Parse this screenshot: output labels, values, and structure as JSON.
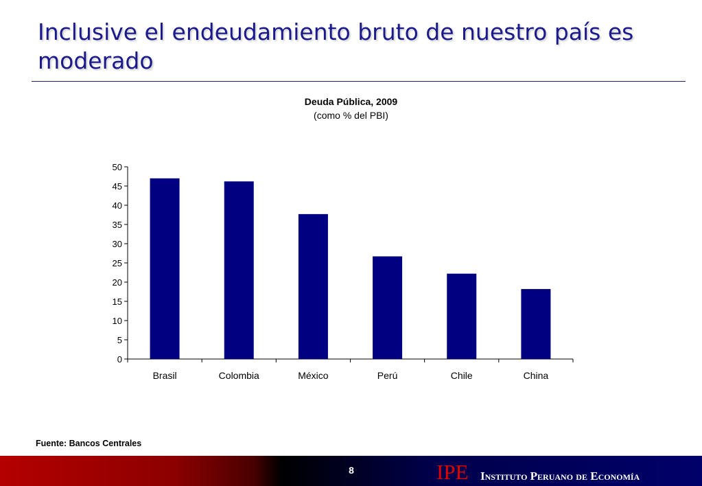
{
  "slide": {
    "title": "Inclusive el endeudamiento bruto de nuestro país es moderado",
    "source": "Fuente: Bancos Centrales",
    "page_number": "8"
  },
  "footer": {
    "logo": "IPE",
    "institute_name": "Instituto Peruano de Economía"
  },
  "chart_data": {
    "type": "bar",
    "title": "Deuda Pública, 2009",
    "subtitle": "(como % del PBI)",
    "xlabel": "",
    "ylabel": "",
    "categories": [
      "Brasil",
      "Colombia",
      "México",
      "Perú",
      "Chile",
      "China"
    ],
    "values": [
      47,
      46.2,
      37.7,
      26.7,
      22.2,
      18.2
    ],
    "ylim": [
      0,
      50
    ],
    "yticks": [
      0,
      5,
      10,
      15,
      20,
      25,
      30,
      35,
      40,
      45,
      50
    ],
    "bar_color": "#000080",
    "grid": false,
    "legend": "none"
  }
}
